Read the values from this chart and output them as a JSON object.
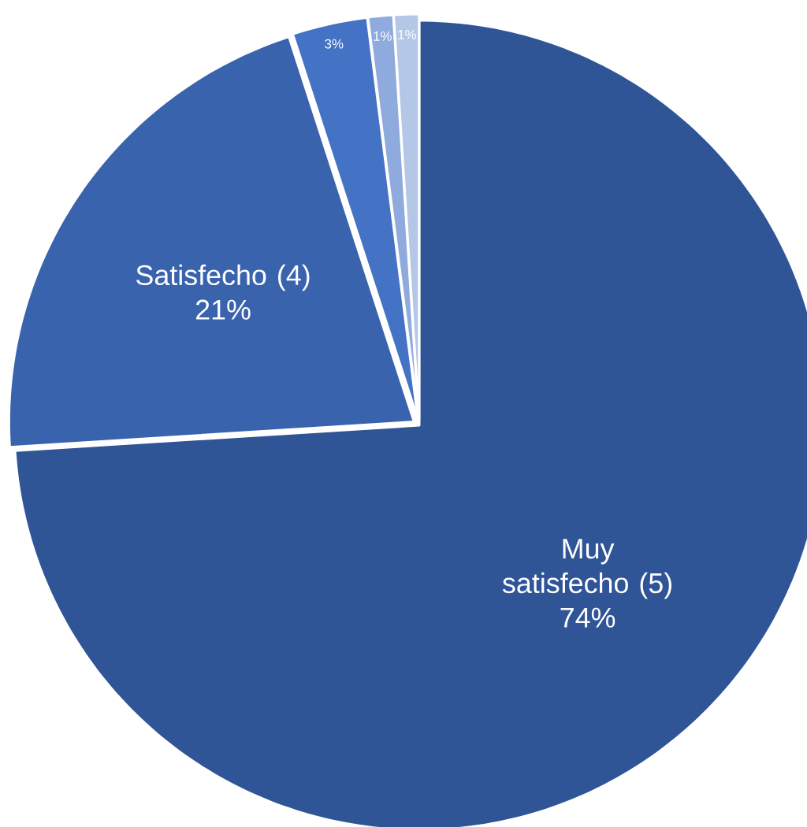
{
  "chart_data": {
    "type": "pie",
    "categories": [
      "Muy satisfecho (5)",
      "Satisfecho (4)",
      null,
      null,
      null
    ],
    "values": [
      74,
      21,
      3,
      1,
      1
    ],
    "value_labels": [
      "74%",
      "21%",
      "3%",
      "1%",
      "1%"
    ],
    "colors": [
      "#2f5597",
      "#3a63ad",
      "#4472c4",
      "#8faadc",
      "#b4c7e7"
    ]
  }
}
